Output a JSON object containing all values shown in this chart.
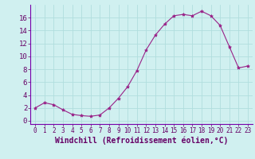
{
  "x": [
    0,
    1,
    2,
    3,
    4,
    5,
    6,
    7,
    8,
    9,
    10,
    11,
    12,
    13,
    14,
    15,
    16,
    17,
    18,
    19,
    20,
    21,
    22,
    23
  ],
  "y": [
    2.0,
    2.8,
    2.5,
    1.7,
    1.0,
    0.8,
    0.7,
    0.9,
    2.0,
    3.5,
    5.3,
    7.8,
    11.0,
    13.3,
    15.0,
    16.3,
    16.5,
    16.3,
    17.0,
    16.3,
    14.8,
    11.5,
    8.2,
    8.5
  ],
  "line_color": "#992288",
  "marker": "*",
  "marker_size": 3,
  "bg_color": "#d0f0f0",
  "grid_color": "#b0dede",
  "xlabel": "Windchill (Refroidissement éolien,°C)",
  "xlabel_fontsize": 7,
  "yticks": [
    0,
    2,
    4,
    6,
    8,
    10,
    12,
    14,
    16
  ],
  "xticks": [
    0,
    1,
    2,
    3,
    4,
    5,
    6,
    7,
    8,
    9,
    10,
    11,
    12,
    13,
    14,
    15,
    16,
    17,
    18,
    19,
    20,
    21,
    22,
    23
  ],
  "ylim": [
    -0.5,
    18
  ],
  "xlim": [
    -0.5,
    23.5
  ],
  "ytick_fontsize": 6.5,
  "xtick_fontsize": 5.5,
  "spine_color": "#7700aa",
  "fig_width": 3.2,
  "fig_height": 2.0,
  "dpi": 100
}
